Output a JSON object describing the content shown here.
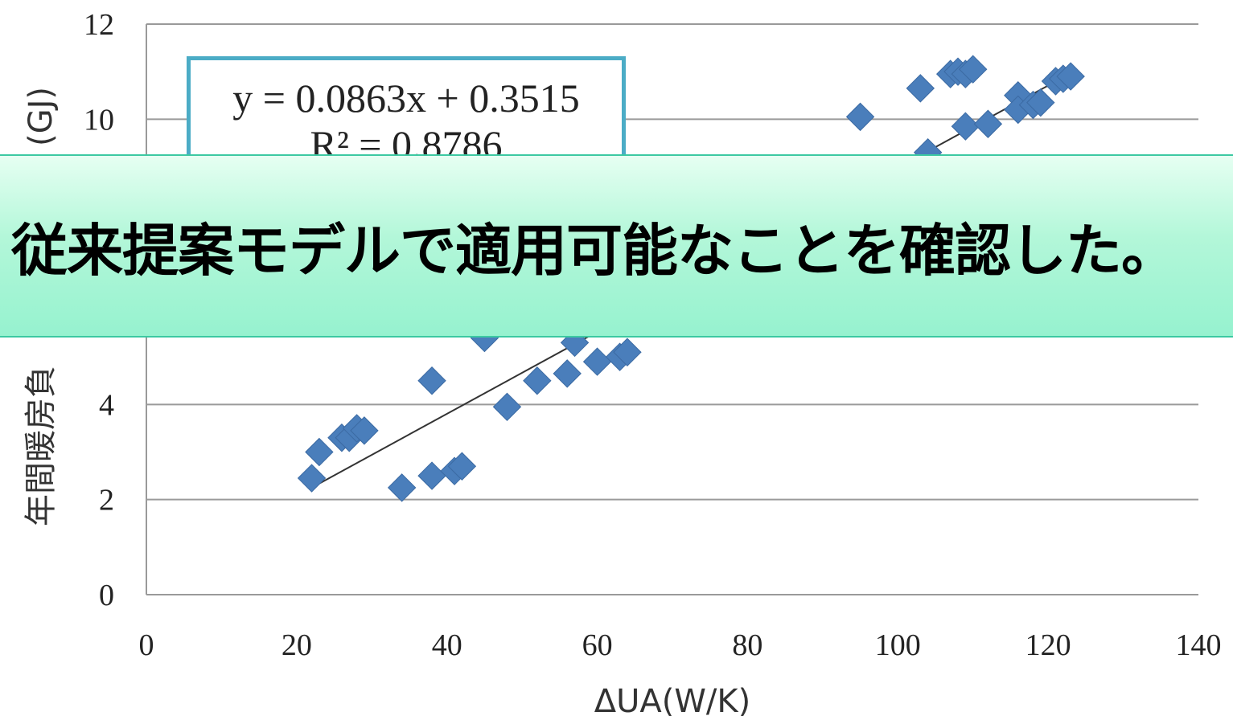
{
  "banner": {
    "text": "従来提案モデルで適用可能なことを確認した。"
  },
  "chart_data": {
    "type": "scatter",
    "xlabel": "ΔUA(W/K)",
    "ylabel": "年間暖房負荷(GJ)",
    "ylabel_visible": "年間暖房負",
    "ylabel_unit_visible": "(GJ)",
    "xlim": [
      0,
      140
    ],
    "ylim": [
      0,
      12
    ],
    "x_ticks": [
      0,
      20,
      40,
      60,
      80,
      100,
      120,
      140
    ],
    "y_ticks": [
      0,
      2,
      4,
      6,
      8,
      10,
      12
    ],
    "y_tick_labels_visible": [
      "0",
      "2",
      "4",
      "10",
      "12"
    ],
    "grid": "horizontal",
    "marker_color": "#4a7ebb",
    "trendline": {
      "equation": "y = 0.0863x + 0.3515",
      "r_squared": "R² = 0.8786",
      "slope": 0.0863,
      "intercept": 0.3515,
      "x_range": [
        22,
        123
      ]
    },
    "points": [
      [
        22,
        2.45
      ],
      [
        23,
        3.0
      ],
      [
        26,
        3.3
      ],
      [
        27,
        3.3
      ],
      [
        28,
        3.5
      ],
      [
        29,
        3.45
      ],
      [
        34,
        2.25
      ],
      [
        38,
        2.5
      ],
      [
        38,
        4.5
      ],
      [
        41,
        2.6
      ],
      [
        42,
        2.7
      ],
      [
        45,
        5.4
      ],
      [
        48,
        3.95
      ],
      [
        52,
        4.5
      ],
      [
        56,
        4.65
      ],
      [
        57,
        5.3
      ],
      [
        60,
        4.9
      ],
      [
        63,
        5.0
      ],
      [
        64,
        5.1
      ],
      [
        95,
        10.05
      ],
      [
        103,
        10.65
      ],
      [
        104,
        9.3
      ],
      [
        107,
        10.95
      ],
      [
        108,
        11.0
      ],
      [
        109,
        10.95
      ],
      [
        110,
        11.05
      ],
      [
        109,
        9.85
      ],
      [
        112,
        9.9
      ],
      [
        116,
        10.5
      ],
      [
        116,
        10.2
      ],
      [
        118,
        10.3
      ],
      [
        119,
        10.35
      ],
      [
        121,
        10.8
      ],
      [
        122,
        10.85
      ],
      [
        123,
        10.9
      ]
    ]
  }
}
